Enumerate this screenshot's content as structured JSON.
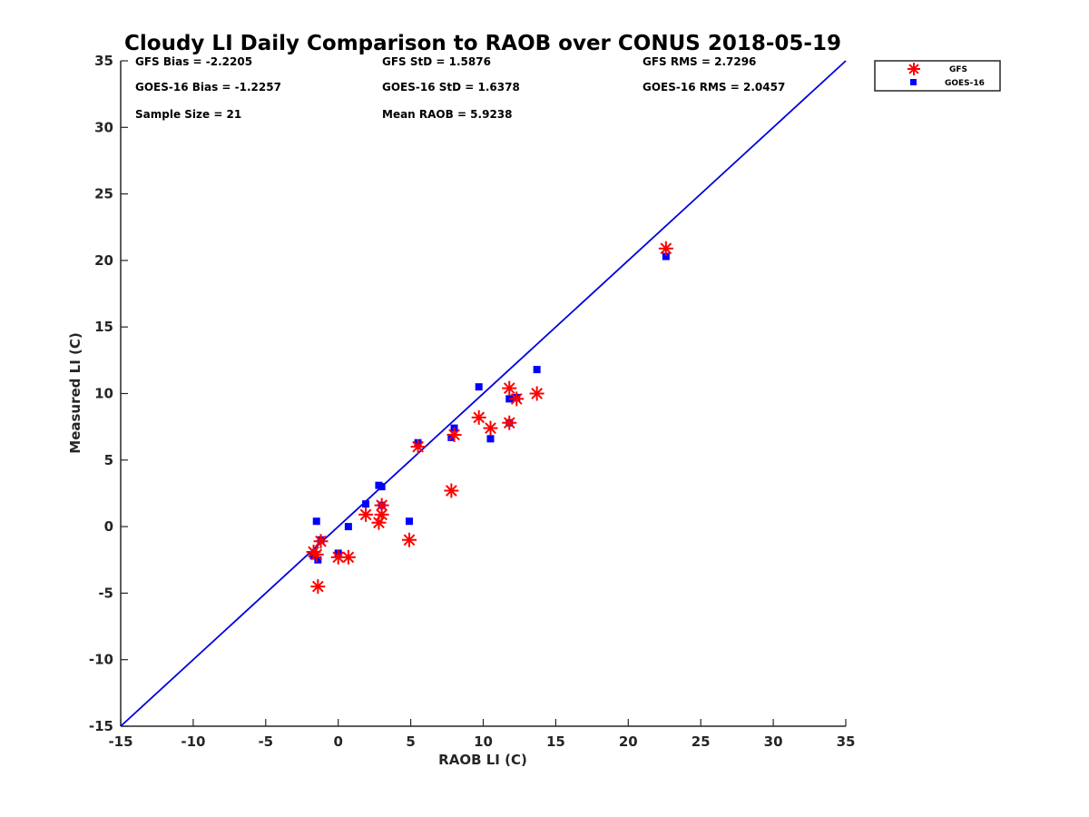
{
  "chart_data": {
    "type": "scatter",
    "title": "Cloudy LI Daily Comparison to RAOB over CONUS 2018-05-19",
    "xlabel": "RAOB LI (C)",
    "ylabel": "Measured LI (C)",
    "xlim": [
      -15,
      35
    ],
    "ylim": [
      -15,
      35
    ],
    "xticks": [
      -15,
      -10,
      -5,
      0,
      5,
      10,
      15,
      20,
      25,
      30,
      35
    ],
    "yticks": [
      -15,
      -10,
      -5,
      0,
      5,
      10,
      15,
      20,
      25,
      30,
      35
    ],
    "legend_placement": "outside-top-right",
    "stats": [
      "GFS Bias = -2.2205",
      "GFS StD = 1.5876",
      "GFS RMS = 2.7296",
      "GOES-16 Bias = -1.2257",
      "GOES-16 StD = 1.6378",
      "GOES-16 RMS = 2.0457",
      "Sample Size = 21",
      "Mean RAOB = 5.9238"
    ],
    "reference_line": {
      "x": [
        -15,
        35
      ],
      "y": [
        -15,
        35
      ],
      "color": "#0000e0"
    },
    "x": [
      22.6,
      13.7,
      12.3,
      11.8,
      11.8,
      10.5,
      9.7,
      8.0,
      7.8,
      5.5,
      4.9,
      3.0,
      3.0,
      2.8,
      1.9,
      0.7,
      0.0,
      -1.2,
      -1.4,
      -1.7,
      -1.5
    ],
    "series": [
      {
        "name": "GFS",
        "marker": "asterisk",
        "color": "#ff0000",
        "values": [
          20.9,
          10.0,
          9.6,
          10.4,
          7.8,
          7.4,
          8.2,
          6.9,
          2.7,
          6.0,
          -1.0,
          1.6,
          0.9,
          0.3,
          0.9,
          -2.3,
          -2.3,
          -1.1,
          -4.5,
          -1.9,
          -2.1
        ]
      },
      {
        "name": "GOES-16",
        "marker": "square",
        "color": "#0000ff",
        "values": [
          20.3,
          11.8,
          9.7,
          9.6,
          7.8,
          6.6,
          10.5,
          7.4,
          6.7,
          6.3,
          0.4,
          1.6,
          3.0,
          3.1,
          1.7,
          0.0,
          -2.0,
          -1.0,
          -2.5,
          -2.2,
          0.4
        ]
      }
    ]
  }
}
